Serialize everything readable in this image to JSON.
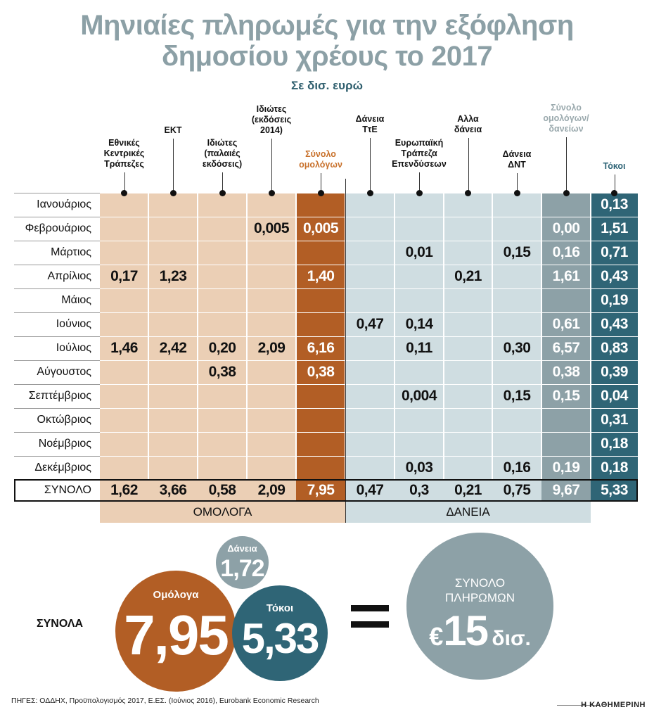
{
  "title_line1": "Μηνιαίες πληρωμές για την εξόφληση",
  "title_line2": "δημοσίου χρέους το 2017",
  "subtitle": "Σε δισ. ευρώ",
  "colors": {
    "bonds_light": "#ebcfb5",
    "bonds_total": "#b25e25",
    "loans_light": "#cfdde1",
    "loans_total": "#8da1a7",
    "interest": "#2f6576",
    "title_gray": "#8ca0a6"
  },
  "chart_data": {
    "type": "table",
    "title": "Μηνιαίες πληρωμές για την εξόφληση δημοσίου χρέους το 2017",
    "unit": "Σε δισ. ευρώ",
    "columns": [
      "Εθνικές Κεντρικές Τράπεζες",
      "ΕΚΤ",
      "Ιδιώτες (παλαιές εκδόσεις)",
      "Ιδιώτες (εκδόσεις 2014)",
      "Σύνολο ομολόγων",
      "Δάνεια ΤτΕ",
      "Ευρωπαϊκή Τράπεζα Επενδύσεων",
      "Αλλα δάνεια",
      "Δάνεια ΔΝΤ",
      "Σύνολο ομολόγων/ δανείων",
      "Τόκοι"
    ],
    "column_lines": [
      [
        "Εθνικές",
        "Κεντρικές",
        "Τράπεζες"
      ],
      [
        "ΕΚΤ"
      ],
      [
        "Ιδιώτες",
        "(παλαιές",
        "εκδόσεις)"
      ],
      [
        "Ιδιώτες",
        "(εκδόσεις",
        "2014)"
      ],
      [
        "Σύνολο",
        "ομολόγων"
      ],
      [
        "Δάνεια",
        "ΤτΕ"
      ],
      [
        "Ευρωπαϊκή",
        "Τράπεζα",
        "Επενδύσεων"
      ],
      [
        "Αλλα",
        "δάνεια"
      ],
      [
        "Δάνεια",
        "ΔΝΤ"
      ],
      [
        "Σύνολο",
        "ομολόγων/",
        "δανείων"
      ],
      [
        "Τόκοι"
      ]
    ],
    "rows": [
      {
        "month": "Ιανουάριος",
        "values": [
          "",
          "",
          "",
          "",
          "",
          "",
          "",
          "",
          "",
          "",
          "0,13"
        ]
      },
      {
        "month": "Φεβρουάριος",
        "values": [
          "",
          "",
          "",
          "0,005",
          "0,005",
          "",
          "",
          "",
          "",
          "0,00",
          "1,51"
        ]
      },
      {
        "month": "Μάρτιος",
        "values": [
          "",
          "",
          "",
          "",
          "",
          "",
          "0,01",
          "",
          "0,15",
          "0,16",
          "0,71"
        ]
      },
      {
        "month": "Απρίλιος",
        "values": [
          "0,17",
          "1,23",
          "",
          "",
          "1,40",
          "",
          "",
          "0,21",
          "",
          "1,61",
          "0,43"
        ]
      },
      {
        "month": "Μάιος",
        "values": [
          "",
          "",
          "",
          "",
          "",
          "",
          "",
          "",
          "",
          "",
          "0,19"
        ]
      },
      {
        "month": "Ιούνιος",
        "values": [
          "",
          "",
          "",
          "",
          "",
          "0,47",
          "0,14",
          "",
          "",
          "0,61",
          "0,43"
        ]
      },
      {
        "month": "Ιούλιος",
        "values": [
          "1,46",
          "2,42",
          "0,20",
          "2,09",
          "6,16",
          "",
          "0,11",
          "",
          "0,30",
          "6,57",
          "0,83"
        ]
      },
      {
        "month": "Αύγουστος",
        "values": [
          "",
          "",
          "0,38",
          "",
          "0,38",
          "",
          "",
          "",
          "",
          "0,38",
          "0,39"
        ]
      },
      {
        "month": "Σεπτέμβριος",
        "values": [
          "",
          "",
          "",
          "",
          "",
          "",
          "0,004",
          "",
          "0,15",
          "0,15",
          "0,04"
        ]
      },
      {
        "month": "Οκτώβριος",
        "values": [
          "",
          "",
          "",
          "",
          "",
          "",
          "",
          "",
          "",
          "",
          "0,31"
        ]
      },
      {
        "month": "Νοέμβριος",
        "values": [
          "",
          "",
          "",
          "",
          "",
          "",
          "",
          "",
          "",
          "",
          "0,18"
        ]
      },
      {
        "month": "Δεκέμβριος",
        "values": [
          "",
          "",
          "",
          "",
          "",
          "",
          "0,03",
          "",
          "0,16",
          "0,19",
          "0,18"
        ]
      }
    ],
    "total": {
      "month": "ΣΥΝΟΛΟ",
      "values": [
        "1,62",
        "3,66",
        "0,58",
        "2,09",
        "7,95",
        "0,47",
        "0,3",
        "0,21",
        "0,75",
        "9,67",
        "5,33"
      ]
    },
    "groups": [
      "ΟΜΟΛΟΓΑ",
      "ΔΑΝΕΙΑ"
    ]
  },
  "summary": {
    "label": "ΣΥΝΟΛΑ",
    "bonds_label": "Ομόλογα",
    "bonds_value": "7,95",
    "loans_label": "Δάνεια",
    "loans_value": "1,72",
    "interest_label": "Τόκοι",
    "interest_value": "5,33",
    "total_line1": "ΣΥΝΟΛΟ",
    "total_line2": "ΠΛΗΡΩΜΩΝ",
    "total_currency": "€",
    "total_value": "15",
    "total_unit": "δισ."
  },
  "source": "ΠΗΓΕΣ: ΟΔΔΗΧ, Προϋπολογισμός 2017, Ε.ΕΣ. (Ιούνιος 2016), Eurobank Economic Research",
  "brand": "Η ΚΑΘΗΜΕΡΙΝΗ"
}
